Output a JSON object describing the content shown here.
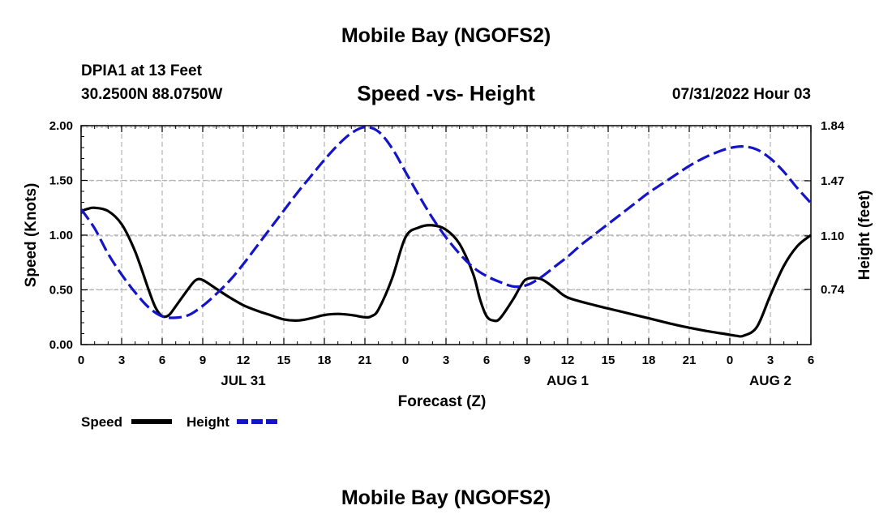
{
  "header": {
    "title": "Mobile Bay (NGOFS2)",
    "station": "DPIA1 at 13 Feet",
    "coordinates": "30.2500N  88.0750W",
    "timestamp": "07/31/2022 Hour 03"
  },
  "footer": {
    "title": "Mobile Bay (NGOFS2)"
  },
  "colors": {
    "speed": "#000000",
    "height": "#1414c8",
    "grid": "#b4b4b4"
  },
  "chart_data": {
    "type": "line",
    "title": "Speed -vs- Height",
    "xlabel": "Forecast (Z)",
    "ylabel": "Speed (Knots)",
    "y2label": "Height (feet)",
    "x_unit": "hours since 2022-07-31 00Z",
    "xlim": [
      0,
      54
    ],
    "ylim": [
      0,
      2.0
    ],
    "y2lim": [
      0.37,
      1.84
    ],
    "x_ticks": [
      0,
      3,
      6,
      9,
      12,
      15,
      18,
      21,
      24,
      27,
      30,
      33,
      36,
      39,
      42,
      45,
      48,
      51,
      54
    ],
    "x_tick_labels": [
      "0",
      "3",
      "6",
      "9",
      "12",
      "15",
      "18",
      "21",
      "0",
      "3",
      "6",
      "9",
      "12",
      "15",
      "18",
      "21",
      "0",
      "3",
      "6"
    ],
    "y_ticks": [
      0,
      0.5,
      1.0,
      1.5,
      2.0
    ],
    "y_tick_labels": [
      "0.00",
      "0.50",
      "1.00",
      "1.50",
      "2.00"
    ],
    "y2_ticks": [
      0.74,
      1.1,
      1.47,
      1.84
    ],
    "y2_tick_labels": [
      "0.74",
      "1.10",
      "1.47",
      "1.84"
    ],
    "date_labels": [
      {
        "x": 12,
        "label": "JUL 31"
      },
      {
        "x": 36,
        "label": "AUG 1"
      },
      {
        "x": 51,
        "label": "AUG 2"
      }
    ],
    "legend": {
      "position": "bottom-left",
      "entries": [
        {
          "name": "Speed",
          "style": "solid"
        },
        {
          "name": "Height",
          "style": "dashed"
        }
      ]
    },
    "series": [
      {
        "name": "Speed",
        "axis": "left",
        "style": "solid",
        "x": [
          0,
          0.5,
          1,
          2,
          3,
          4,
          5,
          5.5,
          6,
          6.5,
          7,
          8,
          8.5,
          9,
          10,
          11,
          12,
          13,
          14,
          15,
          16,
          17,
          18,
          19,
          20,
          21,
          21.5,
          22,
          23,
          24,
          25,
          26,
          27,
          28,
          29,
          29.5,
          30,
          30.5,
          31,
          32,
          32.5,
          33,
          34,
          35,
          36,
          38,
          40,
          42,
          44,
          46,
          48,
          48.5,
          49,
          50,
          51,
          52,
          53,
          54
        ],
        "y": [
          1.22,
          1.24,
          1.25,
          1.22,
          1.1,
          0.85,
          0.5,
          0.34,
          0.26,
          0.27,
          0.35,
          0.52,
          0.59,
          0.59,
          0.51,
          0.43,
          0.36,
          0.31,
          0.27,
          0.23,
          0.22,
          0.24,
          0.27,
          0.28,
          0.27,
          0.25,
          0.26,
          0.32,
          0.6,
          0.98,
          1.07,
          1.09,
          1.05,
          0.92,
          0.65,
          0.42,
          0.26,
          0.22,
          0.24,
          0.42,
          0.53,
          0.6,
          0.6,
          0.52,
          0.43,
          0.36,
          0.3,
          0.24,
          0.18,
          0.13,
          0.09,
          0.08,
          0.08,
          0.16,
          0.45,
          0.72,
          0.9,
          1.0
        ]
      },
      {
        "name": "Height",
        "axis": "right",
        "style": "dashed",
        "x": [
          0,
          1,
          2,
          3,
          4,
          5,
          6,
          7,
          8,
          9,
          10,
          11,
          12,
          13,
          14,
          15,
          16,
          17,
          18,
          19,
          20,
          21,
          22,
          23,
          24,
          25,
          26,
          27,
          28,
          29,
          30,
          31,
          32,
          33,
          34,
          35,
          36,
          37,
          38,
          39,
          40,
          41,
          42,
          43,
          44,
          45,
          46,
          47,
          48,
          49,
          50,
          51,
          52,
          53,
          54
        ],
        "y": [
          1.28,
          1.15,
          0.98,
          0.84,
          0.72,
          0.62,
          0.56,
          0.55,
          0.57,
          0.63,
          0.71,
          0.8,
          0.91,
          1.03,
          1.15,
          1.27,
          1.39,
          1.5,
          1.61,
          1.71,
          1.79,
          1.83,
          1.8,
          1.69,
          1.53,
          1.37,
          1.22,
          1.09,
          0.98,
          0.89,
          0.83,
          0.79,
          0.76,
          0.77,
          0.82,
          0.89,
          0.96,
          1.04,
          1.11,
          1.18,
          1.25,
          1.32,
          1.39,
          1.45,
          1.51,
          1.57,
          1.62,
          1.66,
          1.69,
          1.7,
          1.68,
          1.62,
          1.53,
          1.42,
          1.32
        ]
      }
    ]
  }
}
